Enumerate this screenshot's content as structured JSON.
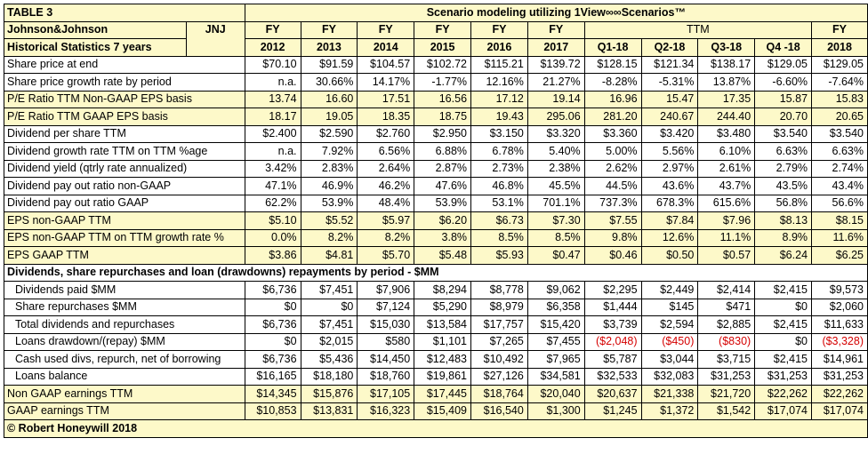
{
  "table_label": "TABLE 3",
  "title": "Scenario modeling utilizing 1View∞∞Scenarios™",
  "company": "Johnson&Johnson",
  "ticker": "JNJ",
  "subtitle": "Historical Statistics 7 years",
  "ttm_label": "TTM",
  "col_top": [
    "FY",
    "FY",
    "FY",
    "FY",
    "FY",
    "FY",
    "",
    "",
    "",
    "",
    "FY"
  ],
  "col_bottom": [
    "2012",
    "2013",
    "2014",
    "2015",
    "2016",
    "2017",
    "Q1-18",
    "Q2-18",
    "Q3-18",
    "Q4 -18",
    "2018"
  ],
  "rows": [
    {
      "label": "Share price at end",
      "values": [
        "$70.10",
        "$91.59",
        "$104.57",
        "$102.72",
        "$115.21",
        "$139.72",
        "$128.15",
        "$121.34",
        "$138.17",
        "$129.05",
        "$129.05"
      ]
    },
    {
      "label": "Share price growth rate by period",
      "values": [
        "n.a.",
        "30.66%",
        "14.17%",
        "-1.77%",
        "12.16%",
        "21.27%",
        "-8.28%",
        "-5.31%",
        "13.87%",
        "-6.60%",
        "-7.64%"
      ]
    },
    {
      "label": "P/E Ratio TTM Non-GAAP EPS basis",
      "values": [
        "13.74",
        "16.60",
        "17.51",
        "16.56",
        "17.12",
        "19.14",
        "16.96",
        "15.47",
        "17.35",
        "15.87",
        "15.83"
      ]
    },
    {
      "label": "P/E Ratio TTM GAAP EPS basis",
      "values": [
        "18.17",
        "19.05",
        "18.35",
        "18.75",
        "19.43",
        "295.06",
        "281.20",
        "240.67",
        "244.40",
        "20.70",
        "20.65"
      ]
    },
    {
      "label": "Dividend per share TTM",
      "values": [
        "$2.400",
        "$2.590",
        "$2.760",
        "$2.950",
        "$3.150",
        "$3.320",
        "$3.360",
        "$3.420",
        "$3.480",
        "$3.540",
        "$3.540"
      ]
    },
    {
      "label": "Dividend growth rate TTM on TTM %age",
      "values": [
        "n.a.",
        "7.92%",
        "6.56%",
        "6.88%",
        "6.78%",
        "5.40%",
        "5.00%",
        "5.56%",
        "6.10%",
        "6.63%",
        "6.63%"
      ]
    },
    {
      "label": "Dividend yield (qtrly rate annualized)",
      "values": [
        "3.42%",
        "2.83%",
        "2.64%",
        "2.87%",
        "2.73%",
        "2.38%",
        "2.62%",
        "2.97%",
        "2.61%",
        "2.79%",
        "2.74%"
      ]
    },
    {
      "label": "Dividend pay out ratio non-GAAP",
      "values": [
        "47.1%",
        "46.9%",
        "46.2%",
        "47.6%",
        "46.8%",
        "45.5%",
        "44.5%",
        "43.6%",
        "43.7%",
        "43.5%",
        "43.4%"
      ]
    },
    {
      "label": "Dividend pay out ratio GAAP",
      "values": [
        "62.2%",
        "53.9%",
        "48.4%",
        "53.9%",
        "53.1%",
        "701.1%",
        "737.3%",
        "678.3%",
        "615.6%",
        "56.8%",
        "56.6%"
      ]
    },
    {
      "label": "EPS non-GAAP TTM",
      "values": [
        "$5.10",
        "$5.52",
        "$5.97",
        "$6.20",
        "$6.73",
        "$7.30",
        "$7.55",
        "$7.84",
        "$7.96",
        "$8.13",
        "$8.15"
      ]
    },
    {
      "label": "EPS non-GAAP TTM on TTM growth rate %",
      "values": [
        "0.0%",
        "8.2%",
        "8.2%",
        "3.8%",
        "8.5%",
        "8.5%",
        "9.8%",
        "12.6%",
        "11.1%",
        "8.9%",
        "11.6%"
      ]
    },
    {
      "label": "EPS GAAP TTM",
      "values": [
        "$3.86",
        "$4.81",
        "$5.70",
        "$5.48",
        "$5.93",
        "$0.47",
        "$0.46",
        "$0.50",
        "$0.57",
        "$6.24",
        "$6.25"
      ]
    }
  ],
  "section_heading": "Dividends, share repurchases and loan (drawdowns) repayments by period - $MM",
  "section_rows": [
    {
      "label": "Dividends paid $MM",
      "values": [
        "$6,736",
        "$7,451",
        "$7,906",
        "$8,294",
        "$8,778",
        "$9,062",
        "$2,295",
        "$2,449",
        "$2,414",
        "$2,415",
        "$9,573"
      ]
    },
    {
      "label": "Share repurchases $MM",
      "values": [
        "$0",
        "$0",
        "$7,124",
        "$5,290",
        "$8,979",
        "$6,358",
        "$1,444",
        "$145",
        "$471",
        "$0",
        "$2,060"
      ]
    },
    {
      "label": "Total dividends and repurchases",
      "values": [
        "$6,736",
        "$7,451",
        "$15,030",
        "$13,584",
        "$17,757",
        "$15,420",
        "$3,739",
        "$2,594",
        "$2,885",
        "$2,415",
        "$11,633"
      ]
    },
    {
      "label": "Loans drawdown/(repay) $MM",
      "values": [
        "$0",
        "$2,015",
        "$580",
        "$1,101",
        "$7,265",
        "$7,455",
        "($2,048)",
        "($450)",
        "($830)",
        "$0",
        "($3,328)"
      ]
    },
    {
      "label": "Cash used divs, repurch, net of borrowing",
      "values": [
        "$6,736",
        "$5,436",
        "$14,450",
        "$12,483",
        "$10,492",
        "$7,965",
        "$5,787",
        "$3,044",
        "$3,715",
        "$2,415",
        "$14,961"
      ]
    },
    {
      "label": "Loans balance",
      "values": [
        "$16,165",
        "$18,180",
        "$18,760",
        "$19,861",
        "$27,126",
        "$34,581",
        "$32,533",
        "$32,083",
        "$31,253",
        "$31,253",
        "$31,253"
      ]
    }
  ],
  "earnings_rows": [
    {
      "label": "Non GAAP earnings TTM",
      "values": [
        "$14,345",
        "$15,876",
        "$17,105",
        "$17,445",
        "$18,764",
        "$20,040",
        "$20,637",
        "$21,338",
        "$21,720",
        "$22,262",
        "$22,262"
      ]
    },
    {
      "label": "GAAP earnings TTM",
      "values": [
        "$10,853",
        "$13,831",
        "$16,323",
        "$15,409",
        "$16,540",
        "$1,300",
        "$1,245",
        "$1,372",
        "$1,542",
        "$17,074",
        "$17,074"
      ]
    }
  ],
  "footer": "© Robert Honeywill 2018",
  "colors": {
    "highlight": "#fdf9c9",
    "negative": "#d50000",
    "border": "#000000"
  }
}
